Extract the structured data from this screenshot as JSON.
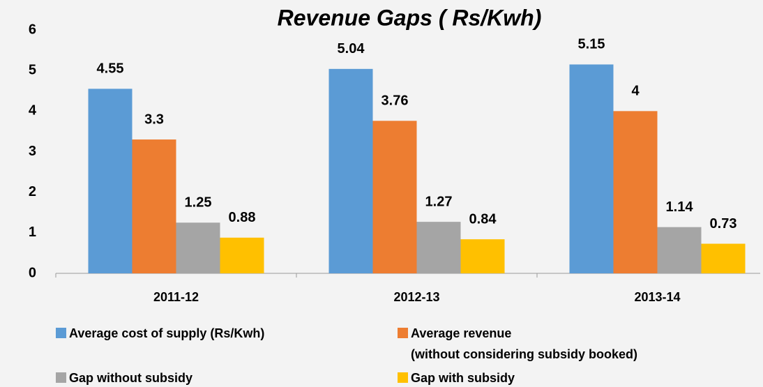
{
  "chart_data": {
    "type": "bar",
    "title": "Revenue Gaps ( Rs/Kwh)",
    "categories": [
      "2011-12",
      "2012-13",
      "2013-14"
    ],
    "series": [
      {
        "name": "Average cost of supply (Rs/Kwh)",
        "color": "#5b9bd5",
        "values": [
          4.55,
          5.04,
          5.15
        ]
      },
      {
        "name": "Average revenue\n(without considering subsidy booked)",
        "color": "#ed7d31",
        "values": [
          3.3,
          3.76,
          4
        ]
      },
      {
        "name": "Gap without subsidy",
        "color": "#a5a5a5",
        "values": [
          1.25,
          1.27,
          1.14
        ]
      },
      {
        "name": "Gap with subsidy",
        "color": "#ffc000",
        "values": [
          0.88,
          0.84,
          0.73
        ]
      }
    ],
    "ylim": [
      0,
      6
    ],
    "yticks": [
      0,
      1,
      2,
      3,
      4,
      5,
      6
    ],
    "grid": false
  }
}
